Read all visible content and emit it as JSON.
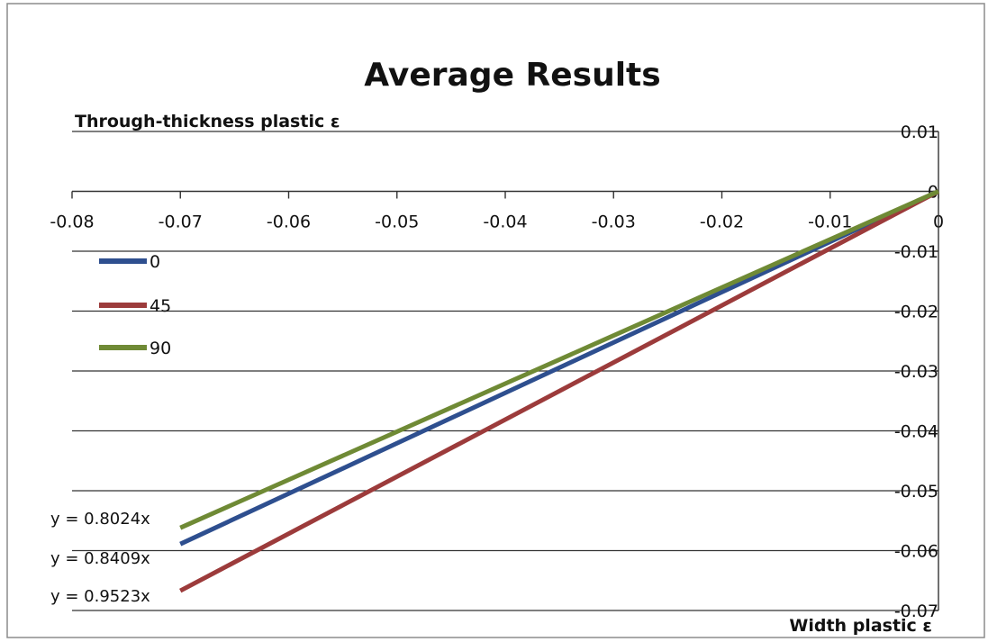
{
  "chart_data": {
    "type": "line",
    "title": "Average Results",
    "xlabel": "Width plastic ε",
    "ylabel": "Through-thickness plastic ε",
    "xlim": [
      -0.08,
      0
    ],
    "ylim": [
      -0.07,
      0.01
    ],
    "x_ticks": [
      "-0.08",
      "-0.07",
      "-0.06",
      "-0.05",
      "-0.04",
      "-0.03",
      "-0.02",
      "-0.01",
      "0"
    ],
    "y_ticks": [
      "0.01",
      "0",
      "-0.01",
      "-0.02",
      "-0.03",
      "-0.04",
      "-0.05",
      "-0.06",
      "-0.07"
    ],
    "grid": true,
    "legend_position": "left",
    "series": [
      {
        "name": "0",
        "color": "#2e4f8f",
        "points": [
          [
            -0.07,
            -0.0589
          ],
          [
            0,
            0
          ]
        ]
      },
      {
        "name": "45",
        "color": "#9c3b3b",
        "points": [
          [
            -0.07,
            -0.0667
          ],
          [
            0,
            0
          ]
        ]
      },
      {
        "name": "90",
        "color": "#6f8a35",
        "points": [
          [
            -0.07,
            -0.0562
          ],
          [
            0,
            0
          ]
        ]
      }
    ],
    "annotations": [
      "y = 0.8024x",
      "y = 0.8409x",
      "y = 0.9523x"
    ]
  }
}
